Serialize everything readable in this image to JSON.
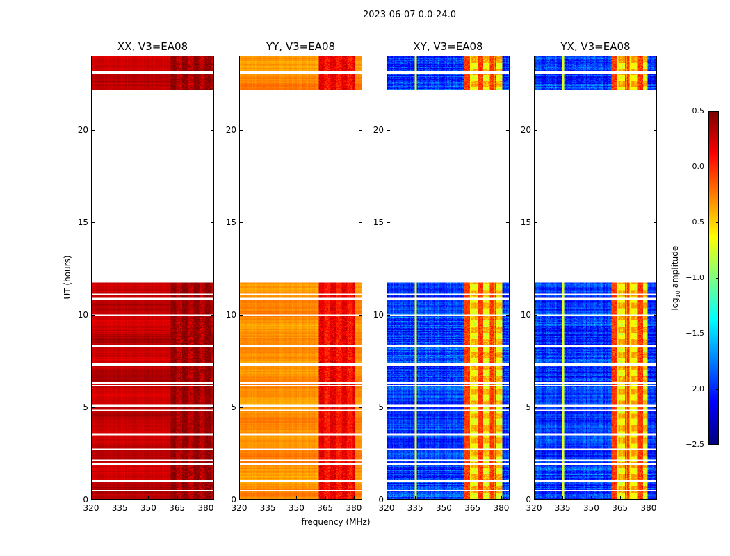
{
  "chart_data": {
    "type": "heatmap",
    "title": "2023-06-07 0.0-24.0",
    "xlabel": "frequency (MHz)",
    "ylabel": "UT (hours)",
    "xlim": [
      320,
      384.4
    ],
    "ylim": [
      0,
      24
    ],
    "xticks": [
      320,
      335,
      350,
      365,
      380
    ],
    "yticks": [
      0,
      5,
      10,
      15,
      20
    ],
    "data_gaps_hours": [
      [
        11.05,
        11.12
      ],
      [
        11.75,
        22.2
      ],
      [
        23.05,
        23.2
      ]
    ],
    "flag_lines_hours": [
      8.3,
      7.3,
      7.35,
      5.05,
      4.8,
      3.5,
      2.1,
      1.9,
      1.0,
      10.85,
      9.95,
      6.3,
      6.15,
      2.7,
      0.45
    ],
    "panels": [
      {
        "title": "XX, V3=EA08",
        "base_log_amp": 0.3,
        "rfi_band_mhz": [
          362,
          384
        ],
        "rfi_log_amp": 0.42,
        "band_pattern": false
      },
      {
        "title": "YY, V3=EA08",
        "base_log_amp": -0.3,
        "rfi_band_mhz": [
          362,
          381
        ],
        "rfi_log_amp": 0.15,
        "band_pattern": false
      },
      {
        "title": "XY, V3=EA08",
        "base_log_amp": -1.95,
        "rfi_band_mhz": [
          361,
          381
        ],
        "rfi_log_amp": -0.3,
        "band_pattern": true
      },
      {
        "title": "YX, V3=EA08",
        "base_log_amp": -1.95,
        "rfi_band_mhz": [
          361,
          380
        ],
        "rfi_log_amp": -0.3,
        "band_pattern": true
      }
    ],
    "colorbar": {
      "label_main": "log",
      "label_sub": "10",
      "label_rest": " amplitude",
      "range": [
        -2.5,
        0.5
      ],
      "ticks": [
        "0.5",
        "0.0",
        "−0.5",
        "−1.0",
        "−1.5",
        "−2.0",
        "−2.5"
      ],
      "tick_values": [
        0.5,
        0.0,
        -0.5,
        -1.0,
        -1.5,
        -2.0,
        -2.5
      ],
      "colormap": "jet"
    }
  }
}
